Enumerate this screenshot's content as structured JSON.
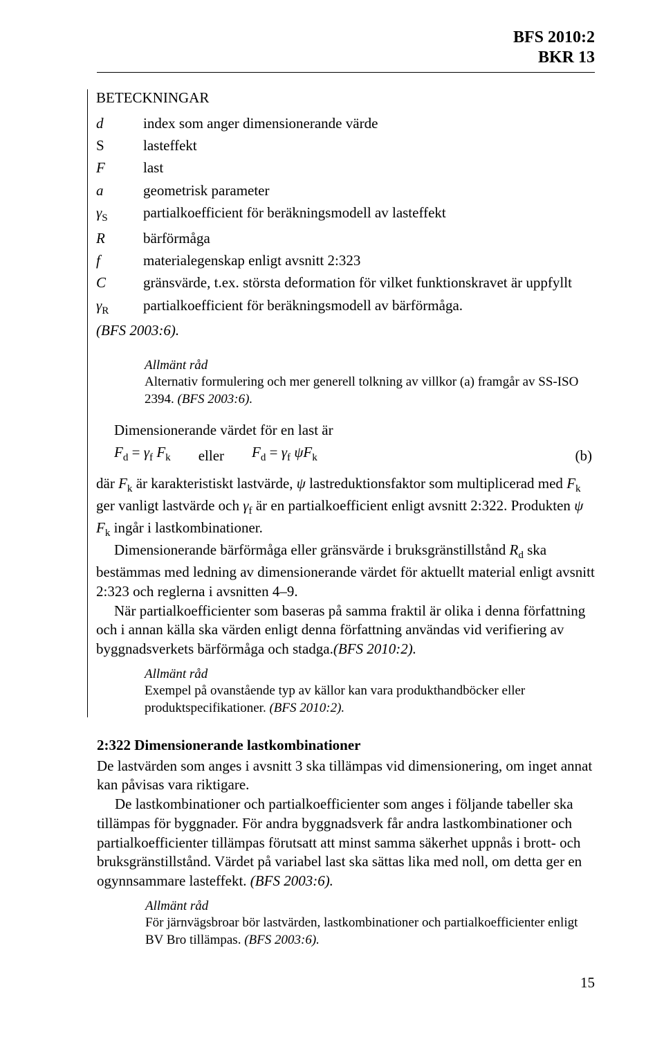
{
  "header": {
    "line1": "BFS 2010:2",
    "line2": "BKR 13"
  },
  "sectionTitle": "BETECKNINGAR",
  "defs": {
    "d": "index som anger dimensionerande värde",
    "S": "lasteffekt",
    "F": "last",
    "a": "geometrisk parameter",
    "gammaS": "partialkoefficient för beräkningsmodell av lasteffekt",
    "R": "bärförmåga",
    "f": "materialegenskap enligt avsnitt 2:323",
    "C": "gränsvärde, t.ex. största deformation för vilket funktionskravet är uppfyllt",
    "gammaR": "partialkoefficient för beräkningsmodell av bärförmåga.",
    "bfs": "(BFS 2003:6)."
  },
  "adv1": {
    "title": "Allmänt råd",
    "body": "Alternativ formulering och mer generell tolkning av villkor (a) framgår av SS-ISO 2394. ",
    "tail": "(BFS 2003:6)."
  },
  "dimLine": "Dimensionerande värdet för en last är",
  "eq": {
    "eller": "eller",
    "mark": "(b)"
  },
  "para1a": "där ",
  "para1b": " är karakteristiskt lastvärde, ",
  "para1c": " lastreduktionsfaktor som multiplicerad med ",
  "para1d": " ger vanligt lastvärde och ",
  "para1e": " är en partialkoefficient enligt avsnitt 2:322. Produkten ",
  "para1f": " ingår i lastkombinationer.",
  "para2": "Dimensionerande bärförmåga eller gränsvärde i bruksgränstillstånd ",
  "para2b": " ska bestämmas med ledning av dimensionerande värdet för aktuellt material enligt avsnitt 2:323 och reglerna i avsnitten 4–9.",
  "para3": "När partialkoefficienter som baseras på samma fraktil är olika i denna författning och i annan källa ska värden enligt denna författning användas vid verifiering av byggnadsverkets bärförmåga och stadga.",
  "para3tail": "(BFS 2010:2).",
  "adv2": {
    "title": "Allmänt råd",
    "body": "Exempel på ovanstående typ av källor kan vara produkthandböcker eller produktspecifikationer. ",
    "tail": "(BFS 2010:2)."
  },
  "h2": "2:322 Dimensionerande lastkombinationer",
  "p4": "De lastvärden som anges i avsnitt 3 ska tillämpas vid dimensionering, om inget annat kan påvisas vara riktigare.",
  "p5": "De lastkombinationer och partialkoefficienter som anges i följande tabeller ska tillämpas för byggnader. För andra byggnadsverk får andra lastkombinationer och partialkoefficienter tillämpas förutsatt att minst samma säkerhet uppnås i brott- och bruksgränstillstånd. Värdet på variabel last ska sättas lika med noll, om detta ger en ogynnsammare lasteffekt. ",
  "p5tail": "(BFS 2003:6).",
  "adv3": {
    "title": "Allmänt råd",
    "body": "För järnvägsbroar bör lastvärden, lastkombinationer och partialkoefficienter enligt BV Bro tillämpas. ",
    "tail": "(BFS 2003:6)."
  },
  "pagenum": "15"
}
